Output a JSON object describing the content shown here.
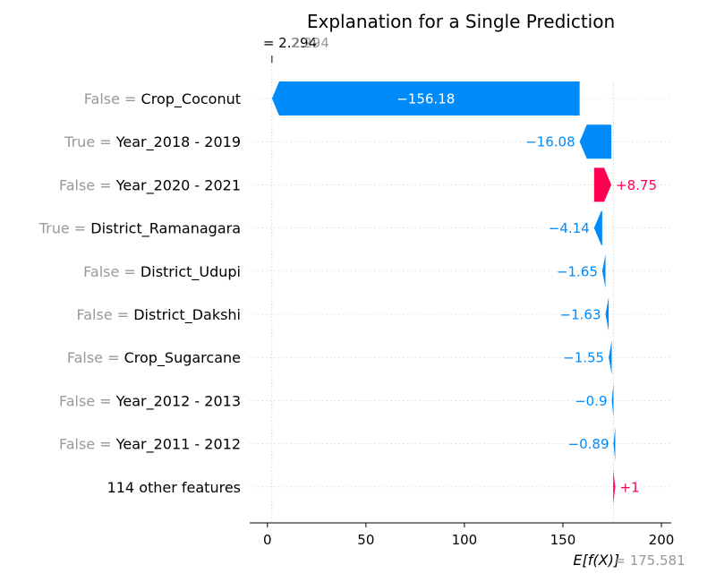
{
  "chart_data": {
    "type": "waterfall",
    "title": "Explanation for a Single Prediction",
    "fx": {
      "value": 2.294,
      "label": "2.294",
      "prefix": "=",
      "gray_label": "2.294"
    },
    "base": {
      "value": 175.581,
      "label": "E[f(X)]",
      "suffix": "= 175.581"
    },
    "xlim": [
      -9,
      205
    ],
    "xticks": [
      0,
      50,
      100,
      150,
      200
    ],
    "xtick_labels": [
      "0",
      "50",
      "100",
      "150",
      "200"
    ],
    "colors": {
      "negative": "#008bfb",
      "positive": "#ff0051",
      "gray": "#999999",
      "text": "#000000"
    },
    "features": [
      {
        "value_label": "False = ",
        "name": "Crop_Coconut",
        "shap": -156.18,
        "label": "−156.18"
      },
      {
        "value_label": "True = ",
        "name": "Year_2018 - 2019",
        "shap": -16.08,
        "label": "−16.08"
      },
      {
        "value_label": "False = ",
        "name": "Year_2020 - 2021",
        "shap": 8.75,
        "label": "+8.75"
      },
      {
        "value_label": "True = ",
        "name": "District_Ramanagara",
        "shap": -4.14,
        "label": "−4.14"
      },
      {
        "value_label": "False = ",
        "name": "District_Udupi",
        "shap": -1.65,
        "label": "−1.65"
      },
      {
        "value_label": "False = ",
        "name": "District_Dakshi",
        "shap": -1.63,
        "label": "−1.63"
      },
      {
        "value_label": "False = ",
        "name": "Crop_Sugarcane",
        "shap": -1.55,
        "label": "−1.55"
      },
      {
        "value_label": "False = ",
        "name": "Year_2012 - 2013",
        "shap": -0.9,
        "label": "−0.9"
      },
      {
        "value_label": "False = ",
        "name": "Year_2011 - 2012",
        "shap": -0.89,
        "label": "−0.89"
      },
      {
        "value_label": "",
        "name": "114 other features",
        "shap": 1.0,
        "label": "+1"
      }
    ]
  }
}
